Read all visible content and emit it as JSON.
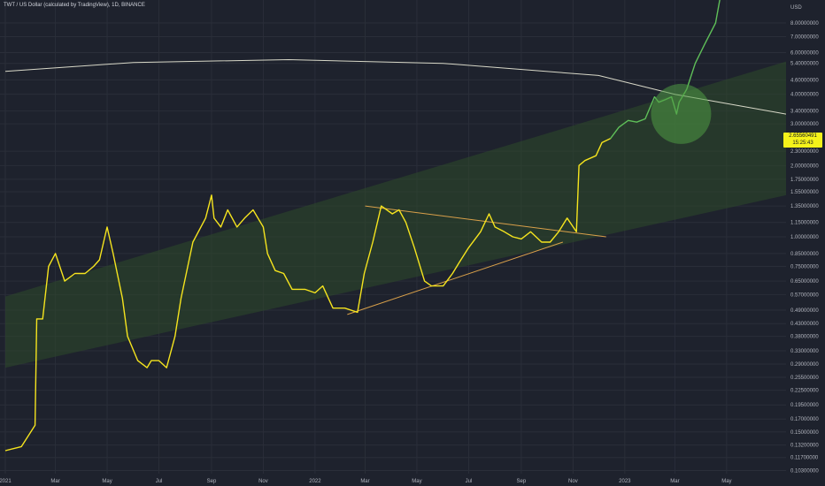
{
  "header": {
    "symbol_title": "TWT / US Dollar (calculated by TradingView), 1D, BINANCE"
  },
  "price_axis": {
    "currency": "USD",
    "current_price": "2.65560491",
    "countdown": "15:25:43"
  },
  "colors": {
    "background": "#1e222d",
    "price_line_past": "#f5e41e",
    "price_line_recent": "#5fbf59",
    "channel_fill": "#2d4a2a",
    "arc_line": "#d8d8c8",
    "trendline": "#d9a04a",
    "highlight_circle": "#4f9a44",
    "price_tag": "#f5f21a"
  },
  "chart_data": {
    "type": "line",
    "y_scale": "log",
    "grid": true,
    "ylim": [
      0.1,
      11.0
    ],
    "y_ticks": [
      "8.00000000",
      "7.00000000",
      "6.00000000",
      "5.40000000",
      "4.60000000",
      "4.00000000",
      "3.40000000",
      "3.00000000",
      "2.30000000",
      "2.00000000",
      "1.75000000",
      "1.55000000",
      "1.35000000",
      "1.15000000",
      "1.00000000",
      "0.85000000",
      "0.75000000",
      "0.65000000",
      "0.57000000",
      "0.49000000",
      "0.43000000",
      "0.38000000",
      "0.33000000",
      "0.29000000",
      "0.25500000",
      "0.22500000",
      "0.19500000",
      "0.17000000",
      "0.15000000",
      "0.13200000",
      "0.11700000",
      "0.10300000"
    ],
    "x_ticks": [
      "2021",
      "Mar",
      "May",
      "Jul",
      "Sep",
      "Nov",
      "2022",
      "Mar",
      "May",
      "Jul",
      "Sep",
      "Nov",
      "2023",
      "Mar",
      "May"
    ],
    "x_tick_dates": [
      "2021-01-01",
      "2021-03-01",
      "2021-05-01",
      "2021-07-01",
      "2021-09-01",
      "2021-11-01",
      "2022-01-01",
      "2022-03-01",
      "2022-05-01",
      "2022-07-01",
      "2022-09-01",
      "2022-11-01",
      "2023-01-01",
      "2023-03-01",
      "2023-05-01"
    ],
    "series": [
      {
        "x": [
          "2021-01-01",
          "2021-01-20",
          "2021-02-05",
          "2021-02-07",
          "2021-02-14",
          "2021-02-21",
          "2021-03-01",
          "2021-03-12",
          "2021-03-24",
          "2021-04-05",
          "2021-04-15",
          "2021-04-22",
          "2021-05-01",
          "2021-05-08",
          "2021-05-19",
          "2021-05-25",
          "2021-06-06",
          "2021-06-17",
          "2021-06-22",
          "2021-07-01",
          "2021-07-10",
          "2021-07-20",
          "2021-07-27",
          "2021-08-10",
          "2021-08-25",
          "2021-09-01",
          "2021-09-04",
          "2021-09-12",
          "2021-09-20",
          "2021-10-01",
          "2021-10-10",
          "2021-10-20",
          "2021-11-01",
          "2021-11-06",
          "2021-11-15",
          "2021-11-25",
          "2021-12-05",
          "2021-12-20",
          "2022-01-01",
          "2022-01-10",
          "2022-01-22",
          "2022-02-05",
          "2022-02-20",
          "2022-02-28",
          "2022-03-10",
          "2022-03-20",
          "2022-04-02",
          "2022-04-10",
          "2022-04-18",
          "2022-04-28",
          "2022-05-10",
          "2022-05-18",
          "2022-06-01",
          "2022-06-12",
          "2022-06-20",
          "2022-07-01",
          "2022-07-15",
          "2022-07-25",
          "2022-08-01",
          "2022-08-12",
          "2022-08-22",
          "2022-09-01",
          "2022-09-12",
          "2022-09-25",
          "2022-10-05",
          "2022-10-15",
          "2022-10-25",
          "2022-11-05",
          "2022-11-08",
          "2022-11-15",
          "2022-11-28",
          "2022-12-05",
          "2022-12-15"
        ],
        "y": [
          0.125,
          0.13,
          0.16,
          0.45,
          0.45,
          0.75,
          0.85,
          0.65,
          0.7,
          0.7,
          0.75,
          0.8,
          1.1,
          0.85,
          0.55,
          0.38,
          0.3,
          0.28,
          0.3,
          0.3,
          0.28,
          0.38,
          0.55,
          0.95,
          1.2,
          1.5,
          1.2,
          1.1,
          1.3,
          1.1,
          1.2,
          1.3,
          1.1,
          0.85,
          0.72,
          0.7,
          0.6,
          0.6,
          0.58,
          0.62,
          0.5,
          0.5,
          0.48,
          0.7,
          0.95,
          1.35,
          1.25,
          1.3,
          1.15,
          0.9,
          0.65,
          0.62,
          0.62,
          0.7,
          0.78,
          0.9,
          1.05,
          1.25,
          1.1,
          1.05,
          1.0,
          0.98,
          1.05,
          0.95,
          0.95,
          1.05,
          1.2,
          1.05,
          2.0,
          2.1,
          2.2,
          2.5,
          2.6
        ]
      },
      {
        "x": [
          "2022-12-15",
          "2022-12-25",
          "2023-01-05",
          "2023-01-15",
          "2023-01-25",
          "2023-02-05",
          "2023-02-10",
          "2023-02-18",
          "2023-02-25",
          "2023-03-03",
          "2023-03-06",
          "2023-03-15",
          "2023-03-25",
          "2023-04-05",
          "2023-04-18",
          "2023-04-25"
        ],
        "y": [
          2.6,
          2.9,
          3.1,
          3.05,
          3.15,
          3.9,
          3.7,
          3.8,
          3.9,
          3.3,
          3.7,
          4.2,
          5.4,
          6.5,
          8.0,
          11.0
        ]
      }
    ],
    "channel": {
      "lower": {
        "x": [
          "2021-01-01",
          "2023-07-10"
        ],
        "y": [
          0.28,
          1.5
        ]
      },
      "upper": {
        "x": [
          "2021-01-01",
          "2023-07-10"
        ],
        "y": [
          0.56,
          5.5
        ]
      }
    },
    "arc_curve": {
      "x": [
        "2021-01-01",
        "2021-06-01",
        "2021-12-01",
        "2022-06-01",
        "2022-12-01",
        "2023-03-01",
        "2023-07-10"
      ],
      "y": [
        5.0,
        5.45,
        5.6,
        5.4,
        4.8,
        4.0,
        3.3
      ]
    },
    "trendlines": [
      {
        "x": [
          "2022-03-01",
          "2022-12-10"
        ],
        "y": [
          1.35,
          1.0
        ]
      },
      {
        "x": [
          "2022-02-08",
          "2022-10-20"
        ],
        "y": [
          0.47,
          0.95
        ]
      }
    ],
    "highlight": {
      "x": "2023-02-05",
      "y": 3.6
    }
  }
}
